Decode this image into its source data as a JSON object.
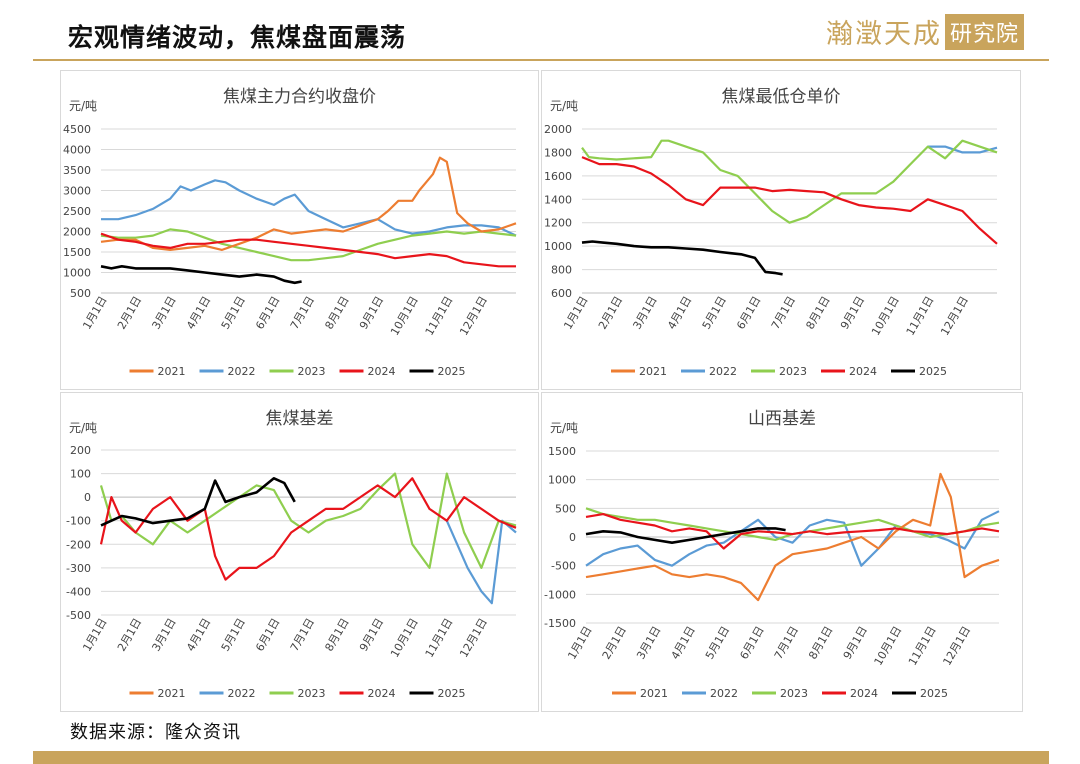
{
  "header": {
    "title": "宏观情绪波动，焦煤盘面震荡",
    "logo_text": "瀚澂天成",
    "logo_box": "研究院"
  },
  "footer": {
    "source": "数据来源：隆众资讯"
  },
  "colors": {
    "2021": "#ed7d31",
    "2022": "#5b9bd5",
    "2023": "#8fce4f",
    "2024": "#e8141b",
    "2025": "#000000",
    "accent": "#c9a45c"
  },
  "chart_data": [
    {
      "type": "line",
      "title": "焦煤主力合约收盘价",
      "ylabel": "元/吨",
      "ylim": [
        500,
        4500
      ],
      "yticks": [
        500,
        1000,
        1500,
        2000,
        2500,
        3000,
        3500,
        4000,
        4500
      ],
      "categories": [
        "1月1日",
        "2月1日",
        "3月1日",
        "4月1日",
        "5月1日",
        "6月1日",
        "7月1日",
        "8月1日",
        "9月1日",
        "10月1日",
        "11月1日",
        "12月1日"
      ],
      "xmax": 12,
      "series": [
        {
          "name": "2021",
          "x": [
            0,
            0.5,
            1,
            1.5,
            2,
            2.5,
            3,
            3.5,
            4,
            4.5,
            5,
            5.5,
            6,
            6.5,
            7,
            7.5,
            8,
            8.3,
            8.6,
            9,
            9.2,
            9.4,
            9.6,
            9.8,
            10,
            10.3,
            10.6,
            11,
            11.5,
            12
          ],
          "y": [
            1750,
            1800,
            1800,
            1600,
            1550,
            1600,
            1650,
            1550,
            1700,
            1850,
            2050,
            1950,
            2000,
            2050,
            2000,
            2150,
            2300,
            2500,
            2750,
            2750,
            3000,
            3200,
            3400,
            3800,
            3700,
            2450,
            2200,
            2000,
            2050,
            2200
          ]
        },
        {
          "name": "2022",
          "x": [
            0,
            0.5,
            1,
            1.5,
            2,
            2.3,
            2.6,
            3,
            3.3,
            3.6,
            4,
            4.5,
            5,
            5.3,
            5.6,
            6,
            6.5,
            7,
            7.5,
            8,
            8.5,
            9,
            9.5,
            10,
            10.5,
            11,
            11.5,
            12
          ],
          "y": [
            2300,
            2300,
            2400,
            2550,
            2800,
            3100,
            3000,
            3150,
            3250,
            3200,
            3000,
            2800,
            2650,
            2800,
            2900,
            2500,
            2300,
            2100,
            2200,
            2300,
            2050,
            1950,
            2000,
            2100,
            2150,
            2150,
            2100,
            1900
          ]
        },
        {
          "name": "2023",
          "x": [
            0,
            0.5,
            1,
            1.5,
            2,
            2.5,
            3,
            3.5,
            4,
            4.5,
            5,
            5.5,
            6,
            6.5,
            7,
            7.5,
            8,
            8.5,
            9,
            9.5,
            10,
            10.5,
            11,
            11.5,
            12
          ],
          "y": [
            1900,
            1850,
            1850,
            1900,
            2050,
            2000,
            1850,
            1700,
            1600,
            1500,
            1400,
            1300,
            1300,
            1350,
            1400,
            1550,
            1700,
            1800,
            1900,
            1950,
            2000,
            1950,
            2000,
            1950,
            1900
          ]
        },
        {
          "name": "2024",
          "x": [
            0,
            0.5,
            1,
            1.5,
            2,
            2.5,
            3,
            3.5,
            4,
            4.5,
            5,
            5.5,
            6,
            6.5,
            7,
            7.5,
            8,
            8.5,
            9,
            9.5,
            10,
            10.5,
            11,
            11.5,
            12
          ],
          "y": [
            1950,
            1800,
            1750,
            1650,
            1600,
            1700,
            1700,
            1750,
            1800,
            1800,
            1750,
            1700,
            1650,
            1600,
            1550,
            1500,
            1450,
            1350,
            1400,
            1450,
            1400,
            1250,
            1200,
            1150,
            1150
          ]
        },
        {
          "name": "2025",
          "x": [
            0,
            0.3,
            0.6,
            1,
            1.5,
            2,
            2.5,
            3,
            3.5,
            4,
            4.5,
            5,
            5.3,
            5.6,
            5.8
          ],
          "y": [
            1150,
            1100,
            1150,
            1100,
            1100,
            1100,
            1050,
            1000,
            950,
            900,
            950,
            900,
            800,
            750,
            780
          ]
        }
      ]
    },
    {
      "type": "line",
      "title": "焦煤最低仓单价",
      "ylabel": "元/吨",
      "ylim": [
        600,
        2000
      ],
      "yticks": [
        600,
        800,
        1000,
        1200,
        1400,
        1600,
        1800,
        2000
      ],
      "categories": [
        "1月1日",
        "2月1日",
        "3月1日",
        "4月1日",
        "5月1日",
        "6月1日",
        "7月1日",
        "8月1日",
        "9月1日",
        "10月1日",
        "11月1日",
        "12月1日"
      ],
      "xmax": 12,
      "series": [
        {
          "name": "2021",
          "x": [],
          "y": []
        },
        {
          "name": "2022",
          "x": [
            10,
            10.5,
            11,
            11.5,
            12
          ],
          "y": [
            1850,
            1850,
            1800,
            1800,
            1840
          ]
        },
        {
          "name": "2023",
          "x": [
            0,
            0.2,
            0.5,
            1,
            1.5,
            2,
            2.3,
            2.5,
            3,
            3.5,
            4,
            4.5,
            5,
            5.5,
            6,
            6.5,
            7,
            7.5,
            8,
            8.5,
            9,
            9.5,
            10,
            10.5,
            11,
            11.5,
            12
          ],
          "y": [
            1840,
            1760,
            1750,
            1740,
            1750,
            1760,
            1900,
            1900,
            1850,
            1800,
            1650,
            1600,
            1450,
            1300,
            1200,
            1250,
            1350,
            1450,
            1450,
            1450,
            1550,
            1700,
            1850,
            1750,
            1900,
            1850,
            1800
          ]
        },
        {
          "name": "2024",
          "x": [
            0,
            0.5,
            1,
            1.5,
            2,
            2.5,
            3,
            3.5,
            4,
            4.5,
            5,
            5.5,
            6,
            6.5,
            7,
            7.5,
            8,
            8.5,
            9,
            9.5,
            10,
            10.5,
            11,
            11.5,
            12
          ],
          "y": [
            1760,
            1700,
            1700,
            1680,
            1620,
            1520,
            1400,
            1350,
            1500,
            1500,
            1500,
            1470,
            1480,
            1470,
            1460,
            1400,
            1350,
            1330,
            1320,
            1300,
            1400,
            1350,
            1300,
            1150,
            1020
          ]
        },
        {
          "name": "2025",
          "x": [
            0,
            0.3,
            0.6,
            1,
            1.5,
            2,
            2.5,
            3,
            3.5,
            4,
            4.3,
            4.6,
            5,
            5.3,
            5.6,
            5.8
          ],
          "y": [
            1030,
            1040,
            1030,
            1020,
            1000,
            990,
            990,
            980,
            970,
            950,
            940,
            930,
            900,
            780,
            770,
            760
          ]
        }
      ]
    },
    {
      "type": "line",
      "title": "焦煤基差",
      "ylabel": "元/吨",
      "ylim": [
        -500,
        200
      ],
      "yticks": [
        -500,
        -400,
        -300,
        -200,
        -100,
        0,
        100,
        200
      ],
      "categories": [
        "1月1日",
        "2月1日",
        "3月1日",
        "4月1日",
        "5月1日",
        "6月1日",
        "7月1日",
        "8月1日",
        "9月1日",
        "10月1日",
        "11月1日",
        "12月1日"
      ],
      "xmax": 12,
      "series": [
        {
          "name": "2021",
          "x": [],
          "y": []
        },
        {
          "name": "2022",
          "x": [
            10,
            10.3,
            10.6,
            11,
            11.3,
            11.6,
            12
          ],
          "y": [
            -100,
            -200,
            -300,
            -400,
            -450,
            -100,
            -150
          ]
        },
        {
          "name": "2023",
          "x": [
            0,
            0.3,
            0.6,
            1,
            1.5,
            2,
            2.5,
            3,
            3.5,
            4,
            4.5,
            5,
            5.5,
            6,
            6.5,
            7,
            7.5,
            8,
            8.5,
            9,
            9.5,
            10,
            10.5,
            11,
            11.5,
            12
          ],
          "y": [
            50,
            -100,
            -80,
            -150,
            -200,
            -100,
            -150,
            -100,
            -50,
            0,
            50,
            30,
            -100,
            -150,
            -100,
            -80,
            -50,
            30,
            100,
            -200,
            -300,
            100,
            -150,
            -300,
            -100,
            -120
          ]
        },
        {
          "name": "2024",
          "x": [
            0,
            0.3,
            0.6,
            1,
            1.5,
            2,
            2.5,
            3,
            3.3,
            3.6,
            4,
            4.5,
            5,
            5.5,
            6,
            6.5,
            7,
            7.5,
            8,
            8.5,
            9,
            9.5,
            10,
            10.5,
            11,
            11.5,
            12
          ],
          "y": [
            -200,
            0,
            -100,
            -150,
            -50,
            0,
            -100,
            -50,
            -250,
            -350,
            -300,
            -300,
            -250,
            -150,
            -100,
            -50,
            -50,
            0,
            50,
            0,
            80,
            -50,
            -100,
            0,
            -50,
            -100,
            -130
          ]
        },
        {
          "name": "2025",
          "x": [
            0,
            0.3,
            0.6,
            1,
            1.5,
            2,
            2.5,
            3,
            3.3,
            3.6,
            4,
            4.5,
            5,
            5.3,
            5.6
          ],
          "y": [
            -120,
            -100,
            -80,
            -90,
            -110,
            -100,
            -90,
            -50,
            70,
            -20,
            0,
            20,
            80,
            60,
            -20
          ]
        }
      ]
    },
    {
      "type": "line",
      "title": "山西基差",
      "ylabel": "元/吨",
      "ylim": [
        -1500,
        1500
      ],
      "yticks": [
        -1500,
        -1000,
        -500,
        0,
        500,
        1000,
        1500
      ],
      "categories": [
        "1月1日",
        "2月1日",
        "3月1日",
        "4月1日",
        "5月1日",
        "6月1日",
        "7月1日",
        "8月1日",
        "9月1日",
        "10月1日",
        "11月1日",
        "12月1日"
      ],
      "xmax": 12,
      "series": [
        {
          "name": "2021",
          "x": [
            0,
            0.5,
            1,
            1.5,
            2,
            2.5,
            3,
            3.5,
            4,
            4.5,
            5,
            5.5,
            6,
            6.5,
            7,
            7.5,
            8,
            8.5,
            9,
            9.5,
            10,
            10.3,
            10.6,
            11,
            11.5,
            12
          ],
          "y": [
            -700,
            -650,
            -600,
            -550,
            -500,
            -650,
            -700,
            -650,
            -700,
            -800,
            -1100,
            -500,
            -300,
            -250,
            -200,
            -100,
            0,
            -200,
            100,
            300,
            200,
            1100,
            700,
            -700,
            -500,
            -400
          ]
        },
        {
          "name": "2022",
          "x": [
            0,
            0.5,
            1,
            1.5,
            2,
            2.5,
            3,
            3.5,
            4,
            4.5,
            5,
            5.5,
            6,
            6.5,
            7,
            7.5,
            8,
            8.5,
            9,
            9.5,
            10,
            10.5,
            11,
            11.5,
            12
          ],
          "y": [
            -500,
            -300,
            -200,
            -150,
            -400,
            -500,
            -300,
            -150,
            -100,
            100,
            300,
            0,
            -100,
            200,
            300,
            250,
            -500,
            -200,
            200,
            100,
            50,
            -50,
            -200,
            300,
            450
          ]
        },
        {
          "name": "2023",
          "x": [
            0,
            0.5,
            1,
            1.5,
            2,
            2.5,
            3,
            3.5,
            4,
            4.5,
            5,
            5.5,
            6,
            6.5,
            7,
            7.5,
            8,
            8.5,
            9,
            9.5,
            10,
            10.5,
            11,
            11.5,
            12
          ],
          "y": [
            500,
            400,
            350,
            300,
            300,
            250,
            200,
            150,
            100,
            50,
            0,
            -50,
            50,
            100,
            150,
            200,
            250,
            300,
            200,
            100,
            0,
            50,
            100,
            200,
            250
          ]
        },
        {
          "name": "2024",
          "x": [
            0,
            0.5,
            1,
            1.5,
            2,
            2.5,
            3,
            3.5,
            4,
            4.5,
            5,
            5.5,
            6,
            6.5,
            7,
            7.5,
            8,
            8.5,
            9,
            9.5,
            10,
            10.5,
            11,
            11.5,
            12
          ],
          "y": [
            350,
            400,
            300,
            250,
            200,
            100,
            150,
            100,
            -200,
            50,
            100,
            80,
            50,
            100,
            50,
            80,
            100,
            120,
            150,
            100,
            80,
            50,
            100,
            150,
            100
          ]
        },
        {
          "name": "2025",
          "x": [
            0,
            0.5,
            1,
            1.5,
            2,
            2.5,
            3,
            3.5,
            4,
            4.5,
            5,
            5.5,
            5.8
          ],
          "y": [
            50,
            100,
            80,
            0,
            -50,
            -100,
            -50,
            0,
            50,
            100,
            150,
            150,
            120
          ]
        }
      ]
    }
  ]
}
